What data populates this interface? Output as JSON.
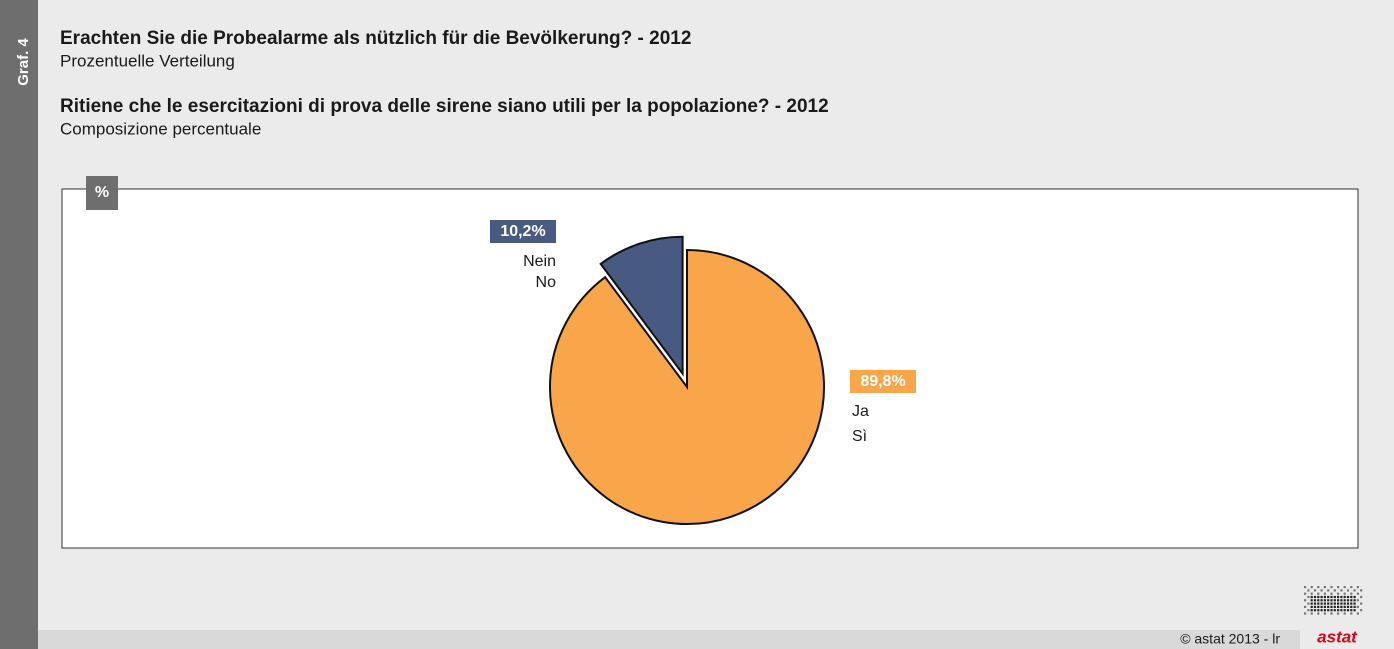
{
  "chart_data": {
    "type": "pie",
    "side_label": "Graf. 4",
    "title": "Erachten Sie die Probealarme als nützlich für die Bevölkerung? - 2012",
    "subtitle": "Prozentuelle Verteilung",
    "title_it": "Ritiene che le esercitazioni di prova delle sirene siano utili per la popolazione? - 2012",
    "subtitle_it": "Composizione percentuale",
    "unit": "%",
    "categories": [
      [
        "Ja",
        "Sì"
      ],
      [
        "Nein",
        "No"
      ]
    ],
    "values": [
      89.8,
      10.2
    ],
    "value_labels": [
      "89,8%",
      "10,2%"
    ],
    "colors": [
      "#f9a54a",
      "#495a82"
    ],
    "exploded": [
      false,
      true
    ],
    "source": "© astat 2013 - lr",
    "logo": "astat"
  }
}
